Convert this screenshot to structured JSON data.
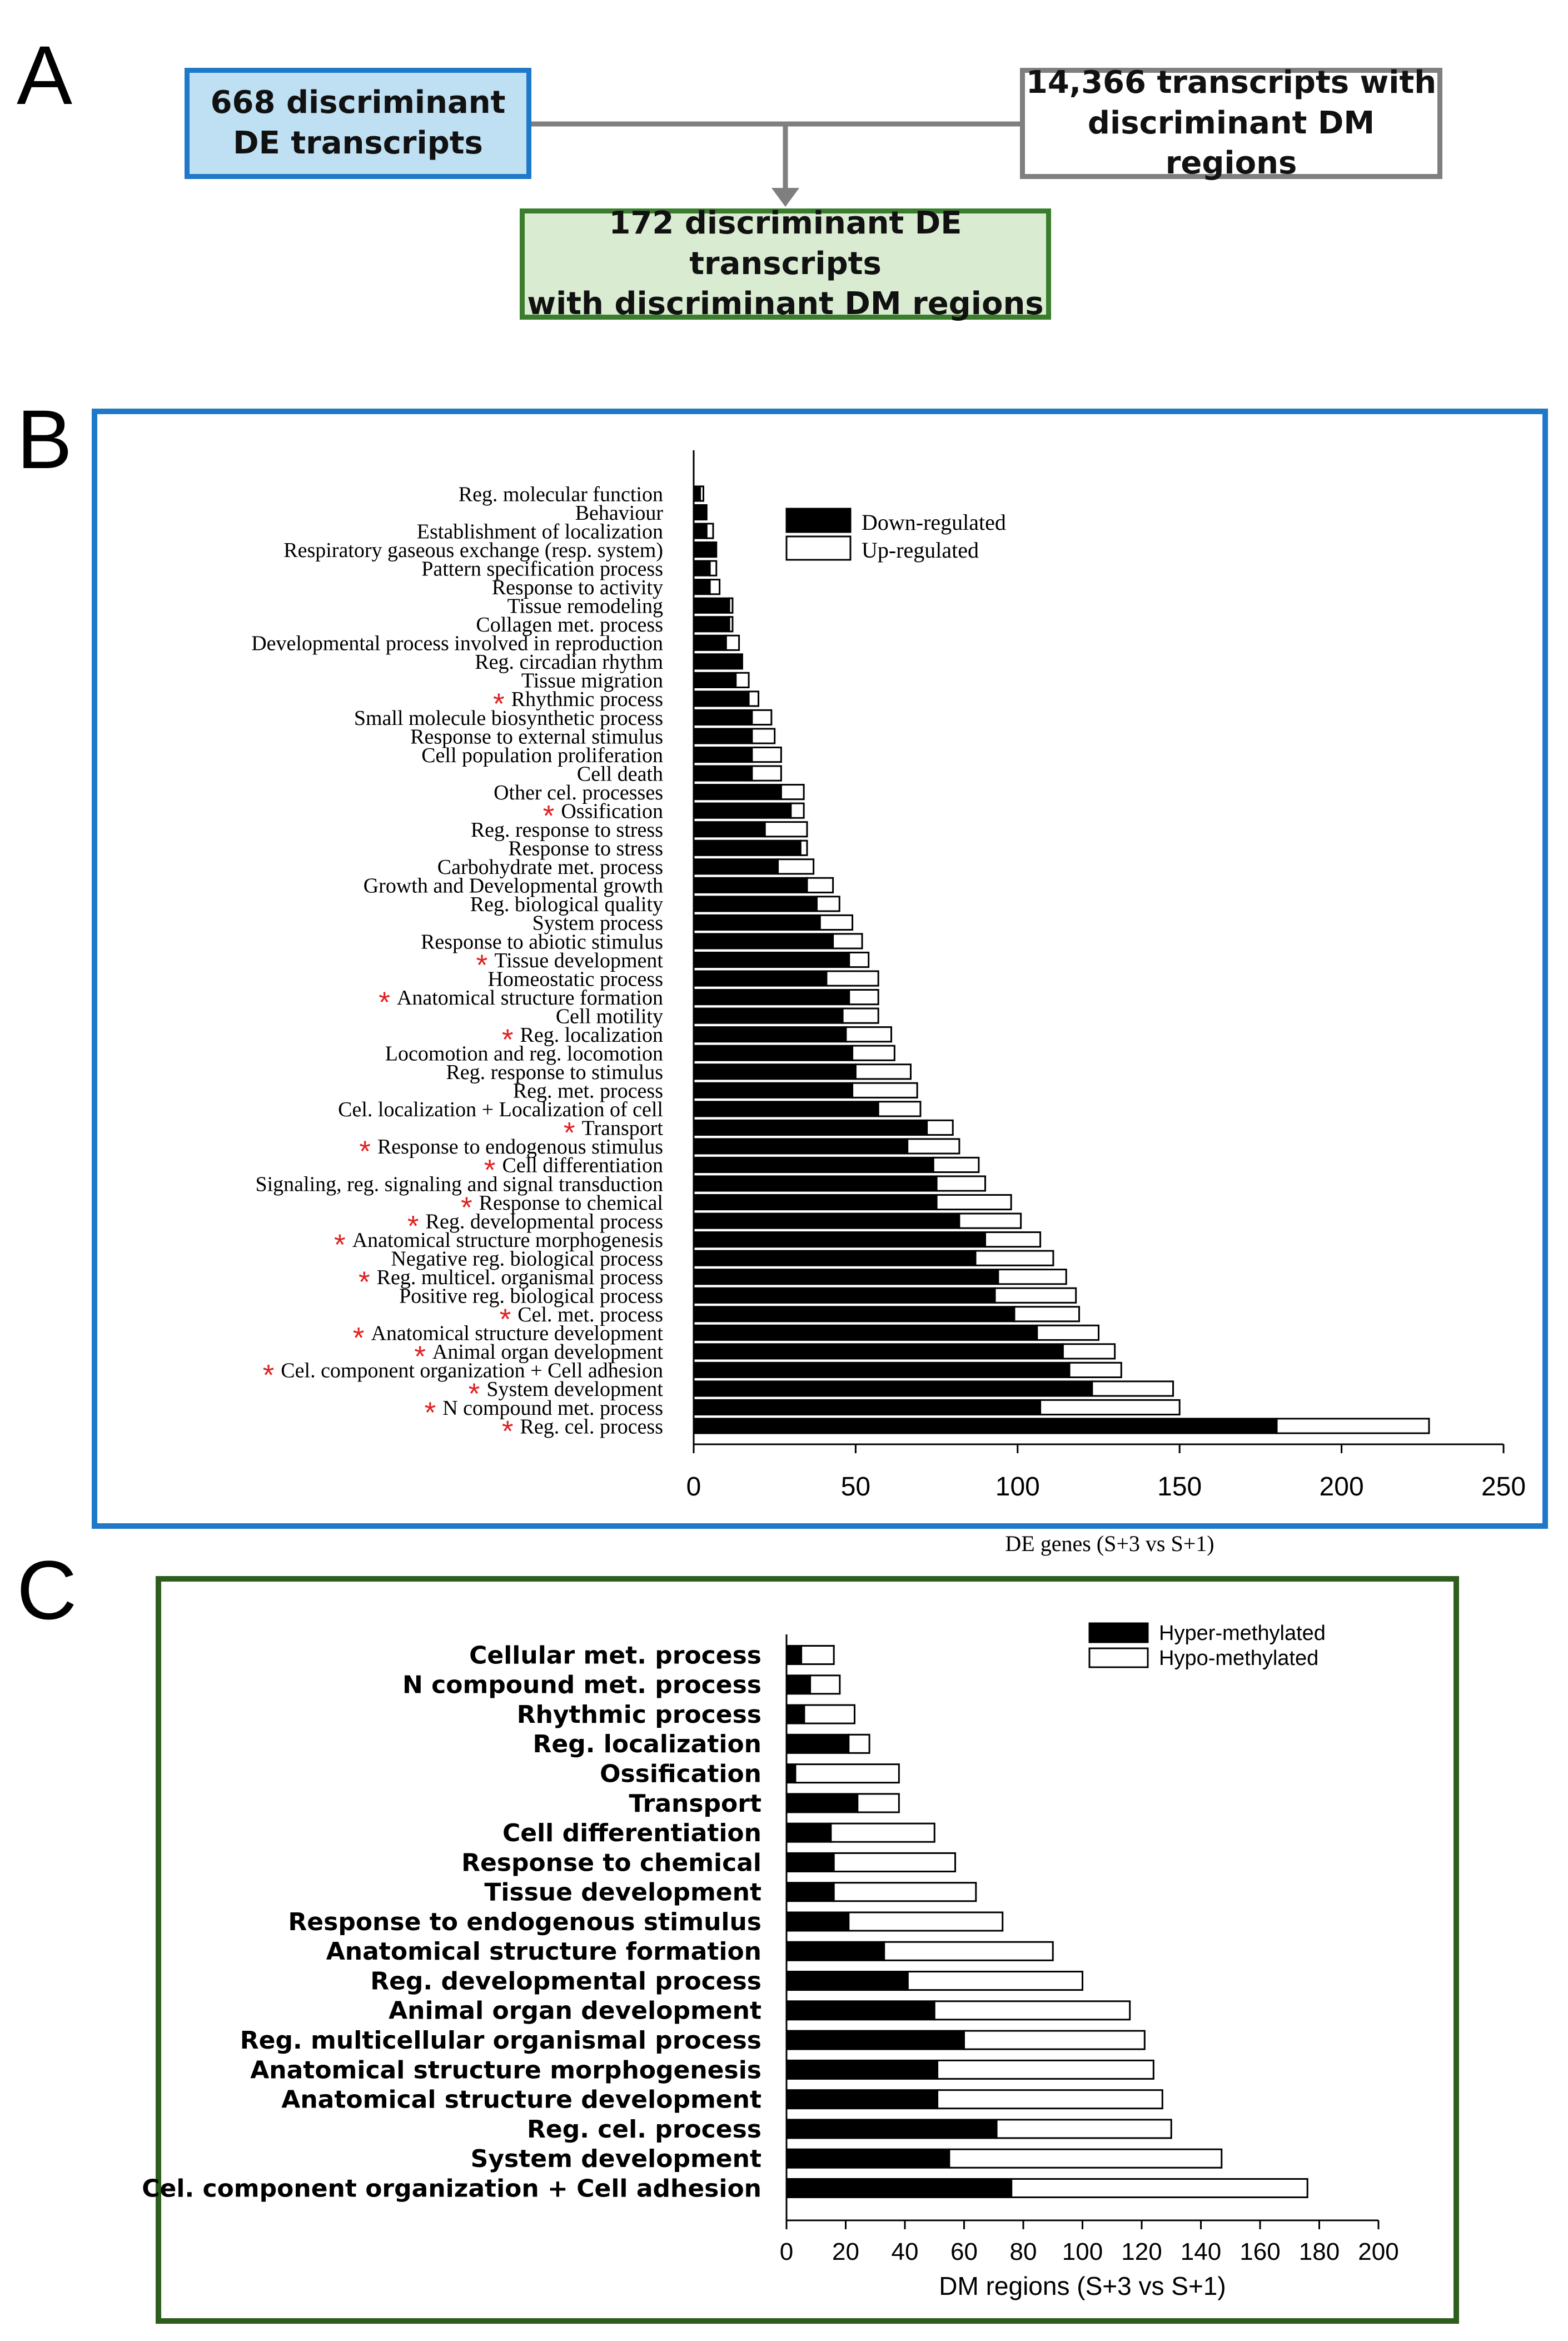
{
  "panel_labels": {
    "a": "A",
    "b": "B",
    "c": "C"
  },
  "flowchart": {
    "box_de": "668 discriminant\nDE transcripts",
    "box_dm": "14,366 transcripts with\ndiscriminant DM regions",
    "box_overlap": "172 discriminant DE transcripts\nwith discriminant DM regions",
    "colors": {
      "blue_fill": "#bfdff2",
      "blue_border": "#1f78c8",
      "green_fill": "#d9ecd2",
      "green_border": "#3a7d2c",
      "gray_border": "#7f7f7f"
    }
  },
  "colors": {
    "panel_b_border": "#1f78c8",
    "panel_c_border": "#2e5e1e",
    "asterisk": "#e02020",
    "bar_dark": "#000000",
    "bar_light": "#ffffff"
  },
  "chart_data": [
    {
      "type": "bar",
      "orientation": "horizontal",
      "stacked": true,
      "xlabel": "DE genes (S+3 vs S+1)",
      "xlim": [
        0,
        250
      ],
      "xticks": [
        "0",
        "50",
        "100",
        "150",
        "200",
        "250"
      ],
      "legend": [
        "Down-regulated",
        "Up-regulated"
      ],
      "legend_position": "top-right",
      "categories": [
        "Reg. molecular function",
        "Behaviour",
        "Establishment of localization",
        "Respiratory gaseous exchange (resp. system)",
        "Pattern specification process",
        "Response to activity",
        "Tissue remodeling",
        "Collagen met. process",
        "Developmental process involved in reproduction",
        "Reg. circadian rhythm",
        "Tissue migration",
        "Rhythmic process",
        "Small molecule biosynthetic process",
        "Response to external stimulus",
        "Cell population proliferation",
        "Cell death",
        "Other cel. processes",
        "Ossification",
        "Reg. response to stress",
        "Response to stress",
        "Carbohydrate met. process",
        "Growth and Developmental growth",
        "Reg. biological quality",
        "System process",
        "Response to abiotic stimulus",
        "Tissue development",
        "Homeostatic process",
        "Anatomical structure formation",
        "Cell motility",
        "Reg. localization",
        "Locomotion and reg. locomotion",
        "Reg. response to stimulus",
        "Reg. met. process",
        "Cel. localization + Localization of cell",
        "Transport",
        "Response to endogenous stimulus",
        "Cell differentiation",
        "Signaling, reg. signaling and signal transduction",
        "Response to chemical",
        "Reg. developmental process",
        "Anatomical structure morphogenesis",
        "Negative reg. biological process",
        "Reg. multicel. organismal process",
        "Positive reg. biological process",
        "Cel. met. process",
        "Anatomical structure development",
        "Animal organ development",
        "Cel. component organization + Cell adhesion",
        "System development",
        "N compound met. process",
        "Reg. cel. process"
      ],
      "marked": [
        false,
        false,
        false,
        false,
        false,
        false,
        false,
        false,
        false,
        false,
        false,
        true,
        false,
        false,
        false,
        false,
        false,
        true,
        false,
        false,
        false,
        false,
        false,
        false,
        false,
        true,
        false,
        true,
        false,
        true,
        false,
        false,
        false,
        false,
        true,
        true,
        true,
        false,
        true,
        true,
        true,
        false,
        true,
        false,
        true,
        true,
        true,
        true,
        true,
        true,
        true
      ],
      "series": [
        {
          "name": "Down-regulated",
          "values": [
            2,
            4,
            4,
            7,
            5,
            5,
            11,
            11,
            10,
            15,
            13,
            17,
            18,
            18,
            18,
            18,
            27,
            30,
            22,
            33,
            26,
            35,
            38,
            39,
            43,
            48,
            41,
            48,
            46,
            47,
            49,
            50,
            49,
            57,
            72,
            66,
            74,
            75,
            75,
            82,
            90,
            87,
            94,
            93,
            99,
            106,
            114,
            116,
            123,
            107,
            180
          ]
        },
        {
          "name": "Up-regulated",
          "values": [
            1,
            0,
            2,
            0,
            2,
            3,
            1,
            1,
            4,
            0,
            4,
            3,
            6,
            7,
            9,
            9,
            7,
            4,
            13,
            2,
            11,
            8,
            7,
            10,
            9,
            6,
            16,
            9,
            11,
            14,
            13,
            17,
            20,
            13,
            8,
            16,
            14,
            15,
            23,
            19,
            17,
            24,
            21,
            25,
            20,
            19,
            16,
            16,
            25,
            43,
            47
          ]
        }
      ]
    },
    {
      "type": "bar",
      "orientation": "horizontal",
      "stacked": true,
      "xlabel": "DM regions (S+3 vs S+1)",
      "xlim": [
        0,
        200
      ],
      "xticks": [
        "0",
        "20",
        "40",
        "60",
        "80",
        "100",
        "120",
        "140",
        "160",
        "180",
        "200"
      ],
      "legend": [
        "Hyper-methylated",
        "Hypo-methylated"
      ],
      "legend_position": "top-right",
      "categories": [
        "Cellular met. process",
        "N compound met. process",
        "Rhythmic process",
        "Reg. localization",
        "Ossification",
        "Transport",
        "Cell differentiation",
        "Response to chemical",
        "Tissue development",
        "Response to endogenous stimulus",
        "Anatomical structure formation",
        "Reg. developmental process",
        "Animal organ development",
        "Reg. multicellular organismal process",
        "Anatomical structure morphogenesis",
        "Anatomical structure development",
        "Reg. cel. process",
        "System development",
        "Cel. component organization + Cell adhesion"
      ],
      "series": [
        {
          "name": "Hyper-methylated",
          "values": [
            5,
            8,
            6,
            21,
            3,
            24,
            15,
            16,
            16,
            21,
            33,
            41,
            50,
            60,
            51,
            51,
            71,
            55,
            76
          ]
        },
        {
          "name": "Hypo-methylated",
          "values": [
            11,
            10,
            17,
            7,
            35,
            14,
            35,
            41,
            48,
            52,
            57,
            59,
            66,
            61,
            73,
            76,
            59,
            92,
            100
          ]
        }
      ]
    }
  ]
}
